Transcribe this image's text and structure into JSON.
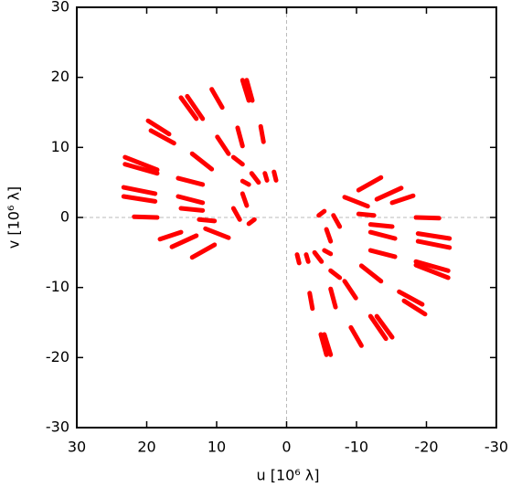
{
  "chart_data": {
    "type": "segments",
    "xlabel": "u [10⁶ λ]",
    "ylabel": "v [10⁶ λ]",
    "xlim": [
      30,
      -30
    ],
    "ylim": [
      -30,
      30
    ],
    "xticks": [
      30,
      20,
      10,
      0,
      -10,
      -20,
      -30
    ],
    "yticks": [
      -30,
      -20,
      -10,
      0,
      10,
      20,
      30
    ],
    "zero_lines": true,
    "color": "#ff0000",
    "series": [
      {
        "x": [
          23.1,
          18.5
        ],
        "values": [
          8.6,
          6.8
        ]
      },
      {
        "x": [
          23.1,
          18.5
        ],
        "values": [
          7.6,
          6.3
        ]
      },
      {
        "x": [
          23.3,
          18.8
        ],
        "values": [
          4.3,
          3.4
        ]
      },
      {
        "x": [
          23.3,
          18.8
        ],
        "values": [
          3.0,
          2.3
        ]
      },
      {
        "x": [
          21.8,
          18.5
        ],
        "values": [
          0.1,
          0
        ]
      },
      {
        "x": [
          18.1,
          15.1
        ],
        "values": [
          -3.1,
          -2.1
        ]
      },
      {
        "x": [
          16.4,
          12.9
        ],
        "values": [
          -4.2,
          -2.6
        ]
      },
      {
        "x": [
          13.5,
          10.3
        ],
        "values": [
          -5.7,
          -3.9
        ]
      },
      {
        "x": [
          19.8,
          16.8
        ],
        "values": [
          13.8,
          11.9
        ]
      },
      {
        "x": [
          19.4,
          16.1
        ],
        "values": [
          12.4,
          10.6
        ]
      },
      {
        "x": [
          15.1,
          12.9
        ],
        "values": [
          17.1,
          14.1
        ]
      },
      {
        "x": [
          14.2,
          12.0
        ],
        "values": [
          17.3,
          14.1
        ]
      },
      {
        "x": [
          10.7,
          9.2
        ],
        "values": [
          18.3,
          15.7
        ]
      },
      {
        "x": [
          6.3,
          5.4
        ],
        "values": [
          19.6,
          16.7
        ]
      },
      {
        "x": [
          5.7,
          4.9
        ],
        "values": [
          19.6,
          16.7
        ]
      },
      {
        "x": [
          15.5,
          12.0
        ],
        "values": [
          5.6,
          4.7
        ]
      },
      {
        "x": [
          15.5,
          12.0
        ],
        "values": [
          3.0,
          2.1
        ]
      },
      {
        "x": [
          15.1,
          12.0
        ],
        "values": [
          1.3,
          1.0
        ]
      },
      {
        "x": [
          12.5,
          10.3
        ],
        "values": [
          -0.3,
          -0.5
        ]
      },
      {
        "x": [
          13.5,
          10.7
        ],
        "values": [
          9.1,
          6.9
        ]
      },
      {
        "x": [
          9.9,
          8.3
        ],
        "values": [
          11.5,
          9.1
        ]
      },
      {
        "x": [
          7.0,
          6.3
        ],
        "values": [
          12.8,
          10.2
        ]
      },
      {
        "x": [
          3.7,
          3.3
        ],
        "values": [
          13.0,
          10.8
        ]
      },
      {
        "x": [
          11.6,
          8.3
        ],
        "values": [
          -1.6,
          -2.9
        ]
      },
      {
        "x": [
          7.6,
          6.3
        ],
        "values": [
          8.6,
          7.6
        ]
      },
      {
        "x": [
          7.6,
          6.7
        ],
        "values": [
          1.3,
          -0.3
        ]
      },
      {
        "x": [
          6.3,
          5.7
        ],
        "values": [
          3.4,
          1.7
        ]
      },
      {
        "x": [
          5.4,
          4.6
        ],
        "values": [
          -0.9,
          -0.3
        ]
      },
      {
        "x": [
          5.0,
          4.0
        ],
        "values": [
          6.3,
          5.0
        ]
      },
      {
        "x": [
          3.1,
          2.8
        ],
        "values": [
          6.3,
          5.3
        ]
      },
      {
        "x": [
          1.8,
          1.5
        ],
        "values": [
          6.5,
          5.3
        ]
      },
      {
        "x": [
          6.3,
          5.4
        ],
        "values": [
          5.2,
          4.7
        ]
      },
      {
        "x": [
          -23.1,
          -18.5
        ],
        "values": [
          -8.6,
          -6.8
        ]
      },
      {
        "x": [
          -23.1,
          -18.5
        ],
        "values": [
          -7.6,
          -6.3
        ]
      },
      {
        "x": [
          -23.3,
          -18.8
        ],
        "values": [
          -4.3,
          -3.4
        ]
      },
      {
        "x": [
          -23.3,
          -18.8
        ],
        "values": [
          -3.0,
          -2.3
        ]
      },
      {
        "x": [
          -21.8,
          -18.5
        ],
        "values": [
          -0.1,
          0
        ]
      },
      {
        "x": [
          -18.1,
          -15.1
        ],
        "values": [
          3.1,
          2.1
        ]
      },
      {
        "x": [
          -16.4,
          -12.9
        ],
        "values": [
          4.2,
          2.6
        ]
      },
      {
        "x": [
          -13.5,
          -10.3
        ],
        "values": [
          5.7,
          3.9
        ]
      },
      {
        "x": [
          -19.8,
          -16.8
        ],
        "values": [
          -13.8,
          -11.9
        ]
      },
      {
        "x": [
          -19.4,
          -16.1
        ],
        "values": [
          -12.4,
          -10.6
        ]
      },
      {
        "x": [
          -15.1,
          -12.9
        ],
        "values": [
          -17.1,
          -14.1
        ]
      },
      {
        "x": [
          -14.2,
          -12.0
        ],
        "values": [
          -17.3,
          -14.1
        ]
      },
      {
        "x": [
          -10.7,
          -9.2
        ],
        "values": [
          -18.3,
          -15.7
        ]
      },
      {
        "x": [
          -6.3,
          -5.4
        ],
        "values": [
          -19.6,
          -16.7
        ]
      },
      {
        "x": [
          -5.7,
          -4.9
        ],
        "values": [
          -19.6,
          -16.7
        ]
      },
      {
        "x": [
          -15.5,
          -12.0
        ],
        "values": [
          -5.6,
          -4.7
        ]
      },
      {
        "x": [
          -15.5,
          -12.0
        ],
        "values": [
          -3.0,
          -2.1
        ]
      },
      {
        "x": [
          -15.1,
          -12.0
        ],
        "values": [
          -1.3,
          -1.0
        ]
      },
      {
        "x": [
          -12.5,
          -10.3
        ],
        "values": [
          0.3,
          0.5
        ]
      },
      {
        "x": [
          -13.5,
          -10.7
        ],
        "values": [
          -9.1,
          -6.9
        ]
      },
      {
        "x": [
          -9.9,
          -8.3
        ],
        "values": [
          -11.5,
          -9.1
        ]
      },
      {
        "x": [
          -7.0,
          -6.3
        ],
        "values": [
          -12.8,
          -10.2
        ]
      },
      {
        "x": [
          -3.7,
          -3.3
        ],
        "values": [
          -13.0,
          -10.8
        ]
      },
      {
        "x": [
          -11.6,
          -8.3
        ],
        "values": [
          1.6,
          2.9
        ]
      },
      {
        "x": [
          -7.6,
          -6.3
        ],
        "values": [
          -8.6,
          -7.6
        ]
      },
      {
        "x": [
          -7.6,
          -6.7
        ],
        "values": [
          -1.3,
          0.3
        ]
      },
      {
        "x": [
          -6.3,
          -5.7
        ],
        "values": [
          -3.4,
          -1.7
        ]
      },
      {
        "x": [
          -5.4,
          -4.6
        ],
        "values": [
          0.9,
          0.3
        ]
      },
      {
        "x": [
          -5.0,
          -4.0
        ],
        "values": [
          -6.3,
          -5.0
        ]
      },
      {
        "x": [
          -3.1,
          -2.8
        ],
        "values": [
          -6.3,
          -5.3
        ]
      },
      {
        "x": [
          -1.8,
          -1.5
        ],
        "values": [
          -6.5,
          -5.3
        ]
      },
      {
        "x": [
          -6.3,
          -5.4
        ],
        "values": [
          -5.2,
          -4.7
        ]
      }
    ]
  }
}
